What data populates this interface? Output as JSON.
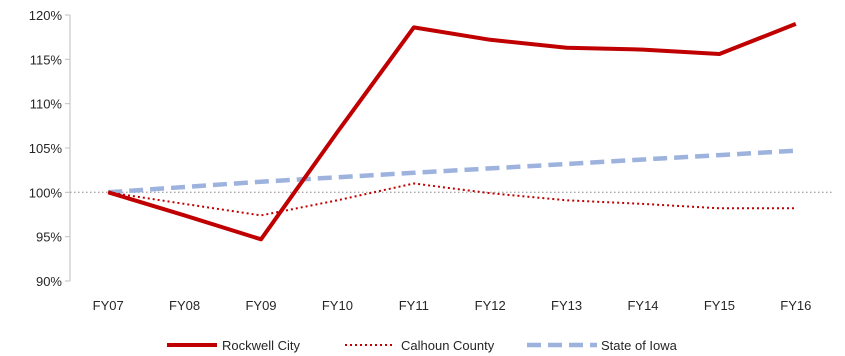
{
  "chart_data": {
    "type": "line",
    "title": "",
    "xlabel": "",
    "ylabel": "",
    "categories": [
      "FY07",
      "FY08",
      "FY09",
      "FY10",
      "FY11",
      "FY12",
      "FY13",
      "FY14",
      "FY15",
      "FY16"
    ],
    "ylim": [
      90,
      120
    ],
    "yticks": [
      90,
      95,
      100,
      105,
      110,
      115,
      120
    ],
    "ytick_labels": [
      "90%",
      "95%",
      "100%",
      "105%",
      "110%",
      "115%",
      "120%"
    ],
    "reference_line": 100,
    "grid": false,
    "legend_position": "bottom",
    "series": [
      {
        "name": "Rockwell City",
        "values": [
          100,
          97.4,
          94.7,
          106.8,
          118.6,
          117.2,
          116.3,
          116.1,
          115.6,
          119.0
        ],
        "color": "#c00000",
        "style": "solid"
      },
      {
        "name": "Calhoun County",
        "values": [
          100,
          98.7,
          97.4,
          99.1,
          101.0,
          99.9,
          99.1,
          98.7,
          98.2,
          98.2
        ],
        "color": "#c00000",
        "style": "dotted"
      },
      {
        "name": "State of Iowa",
        "values": [
          100,
          100.6,
          101.2,
          101.7,
          102.2,
          102.7,
          103.2,
          103.7,
          104.2,
          104.7
        ],
        "color": "#9db3de",
        "style": "dashed"
      }
    ]
  }
}
